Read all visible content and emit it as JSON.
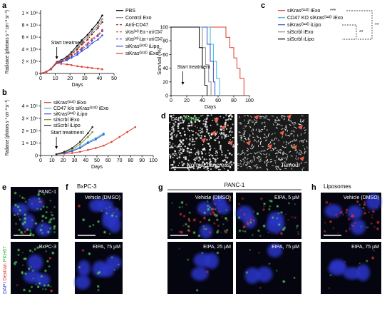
{
  "panel_labels": [
    "a",
    "b",
    "c",
    "d",
    "e",
    "f",
    "g",
    "h"
  ],
  "chart_data": [
    {
      "type": "line",
      "xlabel": "Days",
      "ylabel": "Radiance (photons s⁻¹ cm⁻² sr⁻¹)",
      "annotation": {
        "text": "Start treatment",
        "x": 11
      },
      "markers": true,
      "x": [
        0,
        4,
        7,
        11,
        14,
        18,
        21,
        25,
        28,
        32,
        35,
        39,
        42
      ],
      "xlim": [
        0,
        50
      ],
      "xticks": [
        0,
        10,
        20,
        30,
        40,
        50
      ],
      "ylim": [
        0,
        1050000
      ],
      "yticks": [
        0,
        {
          "value": 200000,
          "label": "2 × 10⁵"
        },
        {
          "value": 400000,
          "label": "4 × 10⁵"
        },
        {
          "value": 600000,
          "label": "6 × 10⁵"
        },
        {
          "value": 800000,
          "label": "8 × 10⁵"
        },
        {
          "value": 1000000,
          "label": "1 × 10⁶"
        }
      ],
      "series": [
        {
          "name": "PBS",
          "color": "#000000",
          "dash": false,
          "values": [
            0,
            30000,
            80000,
            190000,
            220000,
            280000,
            350000,
            460000,
            550000,
            640000,
            730000,
            840000,
            960000
          ]
        },
        {
          "name": "Control Exo",
          "color": "#8c8c8c",
          "dash": false,
          "values": [
            0,
            30000,
            80000,
            180000,
            210000,
            260000,
            330000,
            420000,
            520000,
            600000,
            690000,
            790000,
            900000
          ]
        },
        {
          "name": "Anti-CD47",
          "color": "#8b1a1a",
          "dash": true,
          "values": [
            0,
            30000,
            70000,
            170000,
            200000,
            250000,
            310000,
            400000,
            480000,
            560000,
            650000,
            750000,
            850000
          ]
        },
        {
          "name": "siKrasᴳ¹²ᴰ iExo + anti-CD47",
          "color": "#e8382c",
          "dash": true,
          "values": [
            0,
            30000,
            70000,
            180000,
            200000,
            240000,
            290000,
            360000,
            420000,
            500000,
            570000,
            640000,
            720000
          ]
        },
        {
          "name": "siKrasᴳ¹²ᴰ iLipo + anti-CD47",
          "color": "#3a4fd0",
          "dash": true,
          "values": [
            0,
            30000,
            70000,
            170000,
            190000,
            230000,
            280000,
            340000,
            400000,
            470000,
            540000,
            620000,
            700000
          ]
        },
        {
          "name": "siKrasᴳ¹²ᴰ iLipo",
          "color": "#3a4fd0",
          "dash": false,
          "values": [
            0,
            30000,
            70000,
            170000,
            190000,
            220000,
            260000,
            310000,
            370000,
            430000,
            500000,
            560000,
            630000
          ]
        },
        {
          "name": "siKrasᴳ¹²ᴰ iExo",
          "color": "#e03a2c",
          "dash": false,
          "values": [
            0,
            30000,
            70000,
            170000,
            160000,
            150000,
            140000,
            120000,
            110000,
            100000,
            90000,
            80000,
            70000
          ]
        }
      ]
    },
    {
      "type": "line",
      "xlabel": "Days",
      "ylabel": "Radiance (photons s⁻¹ cm⁻² sr⁻¹)",
      "annotation": {
        "text": "Start treatment",
        "x": 14
      },
      "markers": true,
      "xlim": [
        0,
        100
      ],
      "xticks": [
        0,
        10,
        20,
        30,
        40,
        50,
        60,
        70,
        80,
        90,
        100
      ],
      "ylim": [
        0,
        450000
      ],
      "yticks": [
        0,
        {
          "value": 100000,
          "label": "1 × 10⁵"
        },
        {
          "value": 200000,
          "label": "2 × 10⁵"
        },
        {
          "value": 300000,
          "label": "3 × 10⁵"
        },
        {
          "value": 400000,
          "label": "4 × 10⁵"
        }
      ],
      "series": [
        {
          "name": "siKrasᴳ¹²ᴰ iExo",
          "color": "#e03a2c",
          "dash": false,
          "x": [
            14,
            21,
            28,
            35,
            42,
            49,
            56,
            63,
            70,
            77,
            84
          ],
          "values": [
            10000,
            15000,
            20000,
            30000,
            45000,
            60000,
            80000,
            110000,
            150000,
            190000,
            230000
          ]
        },
        {
          "name": "CD47 k/o siKrasᴳ¹²ᴰ iExo",
          "color": "#35b8d8",
          "dash": false,
          "x": [
            14,
            21,
            28,
            35,
            42,
            49,
            56
          ],
          "values": [
            10000,
            20000,
            40000,
            70000,
            110000,
            140000,
            180000
          ]
        },
        {
          "name": "siKrasᴳ¹²ᴰ iLipo",
          "color": "#3a4fd0",
          "dash": false,
          "x": [
            14,
            21,
            28,
            35,
            42,
            49,
            56
          ],
          "values": [
            10000,
            20000,
            35000,
            60000,
            100000,
            130000,
            170000
          ]
        },
        {
          "name": "siScrbl iExo",
          "color": "#8a8a2a",
          "dash": false,
          "x": [
            14,
            21,
            28,
            35,
            42,
            46
          ],
          "values": [
            10000,
            25000,
            50000,
            90000,
            150000,
            190000
          ]
        },
        {
          "name": "siScrbl iLipo",
          "color": "#222222",
          "dash": false,
          "x": [
            14,
            21,
            28,
            35,
            42,
            46
          ],
          "values": [
            10000,
            30000,
            60000,
            110000,
            180000,
            230000
          ]
        }
      ]
    },
    {
      "type": "line",
      "xlabel": "Days",
      "ylabel": "Survival (%)",
      "annotation": {
        "text": "Start treatment",
        "x": 15
      },
      "markers": false,
      "xlim": [
        0,
        100
      ],
      "xticks": [
        0,
        20,
        40,
        60,
        80,
        100
      ],
      "ylim": [
        0,
        100
      ],
      "yticks": [
        0,
        20,
        40,
        60,
        80,
        100
      ],
      "significance": [
        "***",
        "**",
        "**"
      ],
      "series": [
        {
          "name": "siKrasᴳ¹²ᴰ iExo",
          "color": "#e03a2c",
          "dash": false,
          "x": [
            0,
            70,
            70,
            75,
            75,
            80,
            80,
            84,
            84,
            88,
            88,
            93,
            93
          ],
          "values": [
            100,
            100,
            85,
            85,
            70,
            70,
            55,
            55,
            40,
            40,
            25,
            25,
            0
          ]
        },
        {
          "name": "CD47 KO siKrasᴳ¹²ᴰ iExo",
          "color": "#35b8d8",
          "dash": false,
          "x": [
            0,
            50,
            50,
            54,
            54,
            58,
            58,
            62,
            62
          ],
          "values": [
            100,
            100,
            75,
            75,
            50,
            50,
            25,
            25,
            0
          ]
        },
        {
          "name": "siKrasᴳ¹²ᴰ iLipo",
          "color": "#3a4fd0",
          "dash": false,
          "x": [
            0,
            46,
            46,
            50,
            50,
            54,
            54,
            56,
            56
          ],
          "values": [
            100,
            100,
            75,
            75,
            50,
            50,
            20,
            20,
            0
          ]
        },
        {
          "name": "siScrbl iExo",
          "color": "#8c8c8c",
          "dash": false,
          "x": [
            0,
            40,
            40,
            44,
            44,
            48,
            48,
            51,
            51
          ],
          "values": [
            100,
            100,
            70,
            70,
            45,
            45,
            20,
            20,
            0
          ]
        },
        {
          "name": "siScrbl iLipo",
          "color": "#000000",
          "dash": false,
          "x": [
            0,
            36,
            36,
            40,
            40,
            43,
            43,
            46,
            46
          ],
          "values": [
            100,
            100,
            70,
            70,
            40,
            40,
            15,
            15,
            0
          ]
        }
      ]
    }
  ],
  "panel_d": {
    "stain": [
      "DAPI",
      "PKH67"
    ],
    "labels": [
      "Normal pancreas",
      "Tumour"
    ]
  },
  "panel_e": {
    "side_label": [
      "DAPI",
      "Dextran",
      "PKH67"
    ],
    "labels": [
      "PANC-1",
      "BxPC-3"
    ]
  },
  "panel_f": {
    "title": "BxPC-3",
    "labels": [
      "Vehicle (DMSO)",
      "EIPA, 75 µM"
    ]
  },
  "panel_g": {
    "title": "PANC-1",
    "labels": [
      "Vehicle (DMSO)",
      "EIPA, 5 µM",
      "EIPA, 25 µM",
      "EIPA, 75 µM"
    ]
  },
  "panel_h": {
    "title": "Liposomes",
    "labels": [
      "Vehicle (DMSO)",
      "EIPA, 75 µM"
    ]
  }
}
